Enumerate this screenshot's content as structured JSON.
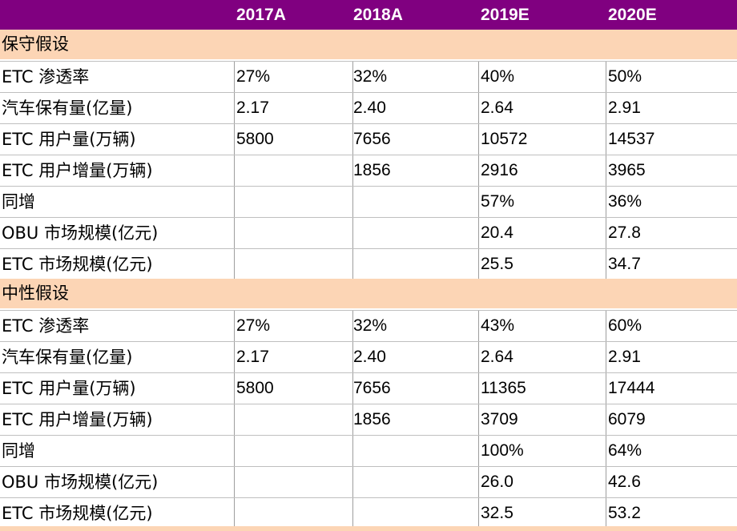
{
  "header": [
    "",
    "2017A",
    "2018A",
    "2019E",
    "2020E"
  ],
  "sections": [
    {
      "title": "保守假设",
      "rows": [
        {
          "label": "ETC 渗透率",
          "values": [
            "27%",
            "32%",
            "40%",
            "50%"
          ]
        },
        {
          "label": "汽车保有量(亿量)",
          "values": [
            "2.17",
            "2.40",
            "2.64",
            "2.91"
          ]
        },
        {
          "label": "ETC 用户量(万辆)",
          "values": [
            "5800",
            "7656",
            "10572",
            "14537"
          ]
        },
        {
          "label": "ETC 用户增量(万辆)",
          "values": [
            "",
            "1856",
            "2916",
            "3965"
          ]
        },
        {
          "label": "同增",
          "values": [
            "",
            "",
            "57%",
            "36%"
          ]
        },
        {
          "label": "OBU 市场规模(亿元)",
          "values": [
            "",
            "",
            "20.4",
            "27.8"
          ]
        },
        {
          "label": "ETC 市场规模(亿元)",
          "values": [
            "",
            "",
            "25.5",
            "34.7"
          ]
        }
      ]
    },
    {
      "title": "中性假设",
      "rows": [
        {
          "label": "ETC 渗透率",
          "values": [
            "27%",
            "32%",
            "43%",
            "60%"
          ]
        },
        {
          "label": "汽车保有量(亿量)",
          "values": [
            "2.17",
            "2.40",
            "2.64",
            "2.91"
          ]
        },
        {
          "label": "ETC 用户量(万辆)",
          "values": [
            "5800",
            "7656",
            "11365",
            "17444"
          ]
        },
        {
          "label": "ETC 用户增量(万辆)",
          "values": [
            "",
            "1856",
            "3709",
            "6079"
          ]
        },
        {
          "label": "同增",
          "values": [
            "",
            "",
            "100%",
            "64%"
          ]
        },
        {
          "label": "OBU 市场规模(亿元)",
          "values": [
            "",
            "",
            "26.0",
            "42.6"
          ]
        },
        {
          "label": "ETC 市场规模(亿元)",
          "values": [
            "",
            "",
            "32.5",
            "53.2"
          ]
        }
      ]
    }
  ],
  "colors": {
    "header_bg": "#800080",
    "header_text": "#ffffff",
    "section_bg": "#fcd5b5",
    "grid": "#9e9e9e"
  }
}
